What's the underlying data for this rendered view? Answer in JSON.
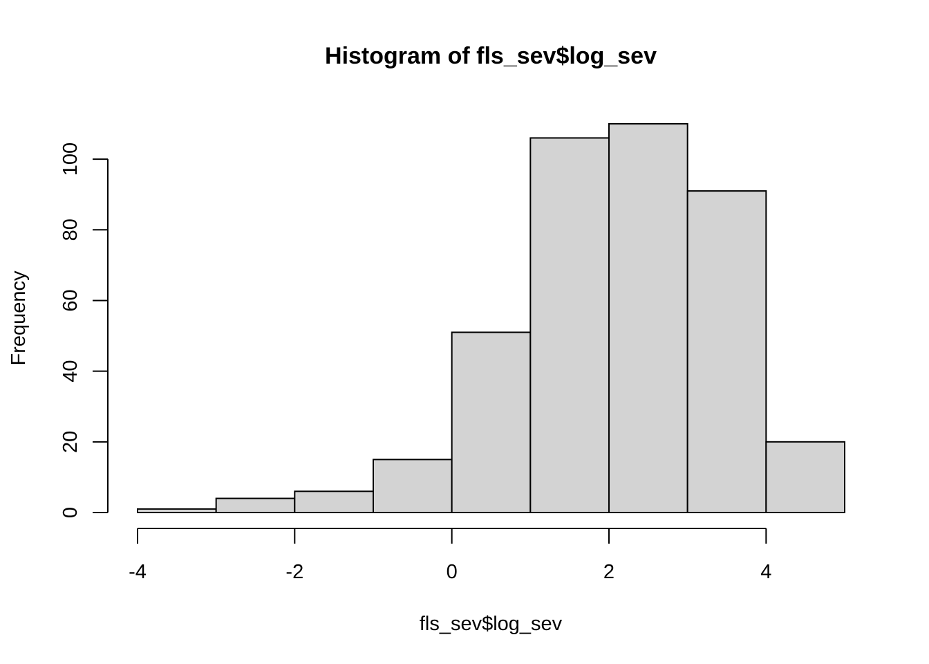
{
  "chart_data": {
    "type": "bar",
    "title": "Histogram of fls_sev$log_sev",
    "xlabel": "fls_sev$log_sev",
    "ylabel": "Frequency",
    "bins": [
      {
        "start": -4,
        "end": -3,
        "count": 1
      },
      {
        "start": -3,
        "end": -2,
        "count": 4
      },
      {
        "start": -2,
        "end": -1,
        "count": 6
      },
      {
        "start": -1,
        "end": 0,
        "count": 15
      },
      {
        "start": 0,
        "end": 1,
        "count": 51
      },
      {
        "start": 1,
        "end": 2,
        "count": 106
      },
      {
        "start": 2,
        "end": 3,
        "count": 110
      },
      {
        "start": 3,
        "end": 4,
        "count": 91
      },
      {
        "start": 4,
        "end": 5,
        "count": 20
      }
    ],
    "xticks": [
      "-4",
      "-2",
      "0",
      "2",
      "4"
    ],
    "yticks": [
      "0",
      "20",
      "40",
      "60",
      "80",
      "100"
    ],
    "xlim": [
      -4,
      5
    ],
    "ylim": [
      0,
      110
    ],
    "grid": false,
    "bar_fill": "#d3d3d3",
    "bar_stroke": "#000000"
  }
}
